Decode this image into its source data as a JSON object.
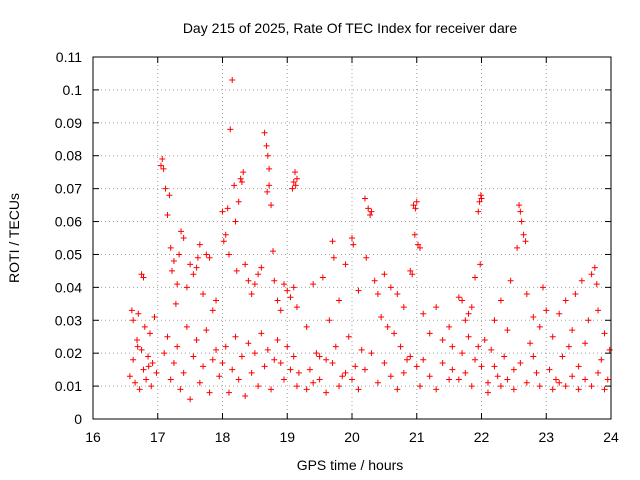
{
  "chart_data": {
    "type": "scatter",
    "title": "Day 215 of 2025, Rate Of TEC Index for receiver dare",
    "xlabel": "GPS time / hours",
    "ylabel": "ROTI / TECUs",
    "xlim": [
      16,
      24
    ],
    "ylim": [
      0,
      0.11
    ],
    "xticks": [
      "16",
      "17",
      "18",
      "19",
      "20",
      "21",
      "22",
      "23",
      "24"
    ],
    "yticks": [
      "0",
      "0.01",
      "0.02",
      "0.03",
      "0.04",
      "0.05",
      "0.06",
      "0.07",
      "0.08",
      "0.09",
      "0.1",
      "0.11"
    ],
    "grid": true,
    "marker": "+",
    "marker_color": "#ff0000",
    "series": [
      {
        "name": "ROTI",
        "points": [
          [
            16.57,
            0.013
          ],
          [
            16.6,
            0.033
          ],
          [
            16.62,
            0.018
          ],
          [
            16.65,
            0.011
          ],
          [
            16.68,
            0.024
          ],
          [
            16.7,
            0.032
          ],
          [
            16.72,
            0.009
          ],
          [
            16.75,
            0.021
          ],
          [
            16.78,
            0.015
          ],
          [
            16.8,
            0.028
          ],
          [
            16.82,
            0.012
          ],
          [
            16.85,
            0.019
          ],
          [
            16.88,
            0.026
          ],
          [
            16.9,
            0.01
          ],
          [
            16.92,
            0.017
          ],
          [
            16.95,
            0.031
          ],
          [
            16.98,
            0.014
          ],
          [
            16.75,
            0.044
          ],
          [
            16.78,
            0.043
          ],
          [
            16.62,
            0.03
          ],
          [
            16.69,
            0.022
          ],
          [
            16.86,
            0.016
          ],
          [
            17.05,
            0.077
          ],
          [
            17.07,
            0.079
          ],
          [
            17.09,
            0.076
          ],
          [
            17.12,
            0.07
          ],
          [
            17.15,
            0.062
          ],
          [
            17.18,
            0.068
          ],
          [
            17.2,
            0.052
          ],
          [
            17.22,
            0.045
          ],
          [
            17.25,
            0.048
          ],
          [
            17.28,
            0.035
          ],
          [
            17.3,
            0.041
          ],
          [
            17.33,
            0.05
          ],
          [
            17.36,
            0.057
          ],
          [
            17.4,
            0.055
          ],
          [
            17.45,
            0.04
          ],
          [
            17.5,
            0.047
          ],
          [
            17.55,
            0.044
          ],
          [
            17.6,
            0.046
          ],
          [
            17.62,
            0.049
          ],
          [
            17.65,
            0.053
          ],
          [
            17.7,
            0.038
          ],
          [
            17.75,
            0.05
          ],
          [
            17.8,
            0.049
          ],
          [
            17.85,
            0.033
          ],
          [
            17.9,
            0.036
          ],
          [
            17.1,
            0.02
          ],
          [
            17.15,
            0.025
          ],
          [
            17.2,
            0.012
          ],
          [
            17.25,
            0.017
          ],
          [
            17.3,
            0.022
          ],
          [
            17.35,
            0.009
          ],
          [
            17.4,
            0.014
          ],
          [
            17.45,
            0.028
          ],
          [
            17.5,
            0.006
          ],
          [
            17.55,
            0.019
          ],
          [
            17.6,
            0.024
          ],
          [
            17.65,
            0.011
          ],
          [
            17.7,
            0.016
          ],
          [
            17.75,
            0.027
          ],
          [
            17.8,
            0.008
          ],
          [
            17.85,
            0.018
          ],
          [
            17.9,
            0.021
          ],
          [
            17.95,
            0.013
          ],
          [
            18.0,
            0.063
          ],
          [
            18.02,
            0.054
          ],
          [
            18.05,
            0.056
          ],
          [
            18.08,
            0.064
          ],
          [
            18.1,
            0.05
          ],
          [
            18.12,
            0.088
          ],
          [
            18.15,
            0.103
          ],
          [
            18.18,
            0.071
          ],
          [
            18.2,
            0.06
          ],
          [
            18.22,
            0.045
          ],
          [
            18.25,
            0.066
          ],
          [
            18.28,
            0.073
          ],
          [
            18.3,
            0.072
          ],
          [
            18.32,
            0.075
          ],
          [
            18.35,
            0.047
          ],
          [
            18.4,
            0.042
          ],
          [
            18.45,
            0.038
          ],
          [
            18.5,
            0.041
          ],
          [
            18.55,
            0.044
          ],
          [
            18.6,
            0.046
          ],
          [
            18.0,
            0.017
          ],
          [
            18.05,
            0.022
          ],
          [
            18.1,
            0.008
          ],
          [
            18.15,
            0.015
          ],
          [
            18.2,
            0.025
          ],
          [
            18.25,
            0.012
          ],
          [
            18.3,
            0.019
          ],
          [
            18.35,
            0.007
          ],
          [
            18.4,
            0.023
          ],
          [
            18.45,
            0.014
          ],
          [
            18.5,
            0.02
          ],
          [
            18.55,
            0.01
          ],
          [
            18.6,
            0.026
          ],
          [
            18.65,
            0.016
          ],
          [
            18.7,
            0.021
          ],
          [
            18.75,
            0.009
          ],
          [
            18.8,
            0.018
          ],
          [
            18.85,
            0.024
          ],
          [
            18.65,
            0.087
          ],
          [
            18.68,
            0.083
          ],
          [
            18.7,
            0.08
          ],
          [
            18.72,
            0.076
          ],
          [
            18.75,
            0.065
          ],
          [
            18.72,
            0.071
          ],
          [
            18.69,
            0.069
          ],
          [
            18.78,
            0.051
          ],
          [
            18.8,
            0.042
          ],
          [
            18.85,
            0.036
          ],
          [
            18.9,
            0.033
          ],
          [
            18.95,
            0.041
          ],
          [
            19.0,
            0.039
          ],
          [
            19.05,
            0.037
          ],
          [
            19.1,
            0.072
          ],
          [
            19.12,
            0.075
          ],
          [
            19.13,
            0.071
          ],
          [
            19.15,
            0.073
          ],
          [
            19.08,
            0.07
          ],
          [
            19.1,
            0.04
          ],
          [
            19.15,
            0.034
          ],
          [
            18.9,
            0.017
          ],
          [
            18.95,
            0.012
          ],
          [
            19.0,
            0.022
          ],
          [
            19.05,
            0.015
          ],
          [
            19.1,
            0.019
          ],
          [
            19.15,
            0.01
          ],
          [
            19.18,
            0.014
          ],
          [
            19.3,
            0.028
          ],
          [
            19.35,
            0.015
          ],
          [
            19.4,
            0.041
          ],
          [
            19.45,
            0.02
          ],
          [
            19.5,
            0.012
          ],
          [
            19.55,
            0.043
          ],
          [
            19.6,
            0.018
          ],
          [
            19.65,
            0.03
          ],
          [
            19.7,
            0.054
          ],
          [
            19.72,
            0.049
          ],
          [
            19.75,
            0.022
          ],
          [
            19.8,
            0.036
          ],
          [
            19.85,
            0.013
          ],
          [
            19.9,
            0.047
          ],
          [
            19.95,
            0.025
          ],
          [
            20.0,
            0.055
          ],
          [
            20.02,
            0.053
          ],
          [
            20.05,
            0.016
          ],
          [
            20.1,
            0.039
          ],
          [
            20.15,
            0.021
          ],
          [
            19.3,
            0.009
          ],
          [
            19.4,
            0.011
          ],
          [
            19.5,
            0.019
          ],
          [
            19.6,
            0.008
          ],
          [
            19.7,
            0.017
          ],
          [
            19.8,
            0.01
          ],
          [
            19.9,
            0.014
          ],
          [
            20.0,
            0.012
          ],
          [
            20.1,
            0.009
          ],
          [
            20.2,
            0.067
          ],
          [
            20.25,
            0.064
          ],
          [
            20.28,
            0.062
          ],
          [
            20.3,
            0.063
          ],
          [
            20.22,
            0.049
          ],
          [
            20.35,
            0.042
          ],
          [
            20.4,
            0.038
          ],
          [
            20.45,
            0.031
          ],
          [
            20.5,
            0.044
          ],
          [
            20.55,
            0.028
          ],
          [
            20.6,
            0.04
          ],
          [
            20.65,
            0.026
          ],
          [
            20.7,
            0.038
          ],
          [
            20.75,
            0.022
          ],
          [
            20.8,
            0.034
          ],
          [
            20.85,
            0.018
          ],
          [
            20.2,
            0.015
          ],
          [
            20.3,
            0.02
          ],
          [
            20.4,
            0.011
          ],
          [
            20.5,
            0.017
          ],
          [
            20.6,
            0.013
          ],
          [
            20.7,
            0.009
          ],
          [
            20.8,
            0.014
          ],
          [
            20.9,
            0.019
          ],
          [
            20.95,
            0.065
          ],
          [
            20.98,
            0.064
          ],
          [
            21.0,
            0.066
          ],
          [
            20.97,
            0.056
          ],
          [
            21.02,
            0.053
          ],
          [
            21.05,
            0.052
          ],
          [
            20.9,
            0.045
          ],
          [
            20.93,
            0.044
          ],
          [
            21.1,
            0.032
          ],
          [
            21.2,
            0.026
          ],
          [
            21.3,
            0.034
          ],
          [
            21.4,
            0.024
          ],
          [
            21.5,
            0.028
          ],
          [
            21.55,
            0.022
          ],
          [
            21.0,
            0.016
          ],
          [
            21.05,
            0.01
          ],
          [
            21.1,
            0.018
          ],
          [
            21.2,
            0.013
          ],
          [
            21.3,
            0.009
          ],
          [
            21.4,
            0.017
          ],
          [
            21.5,
            0.012
          ],
          [
            21.55,
            0.015
          ],
          [
            21.65,
            0.037
          ],
          [
            21.7,
            0.036
          ],
          [
            21.75,
            0.03
          ],
          [
            21.8,
            0.032
          ],
          [
            21.85,
            0.034
          ],
          [
            21.9,
            0.043
          ],
          [
            21.95,
            0.063
          ],
          [
            21.97,
            0.066
          ],
          [
            21.99,
            0.068
          ],
          [
            22.0,
            0.067
          ],
          [
            21.98,
            0.047
          ],
          [
            21.65,
            0.012
          ],
          [
            21.7,
            0.02
          ],
          [
            21.75,
            0.014
          ],
          [
            21.8,
            0.025
          ],
          [
            21.85,
            0.01
          ],
          [
            21.9,
            0.018
          ],
          [
            21.95,
            0.022
          ],
          [
            22.0,
            0.016
          ],
          [
            22.05,
            0.024
          ],
          [
            22.1,
            0.011
          ],
          [
            22.15,
            0.021
          ],
          [
            22.2,
            0.03
          ],
          [
            22.25,
            0.013
          ],
          [
            22.3,
            0.036
          ],
          [
            22.35,
            0.019
          ],
          [
            22.4,
            0.027
          ],
          [
            22.45,
            0.042
          ],
          [
            22.5,
            0.015
          ],
          [
            22.55,
            0.052
          ],
          [
            22.58,
            0.065
          ],
          [
            22.6,
            0.063
          ],
          [
            22.62,
            0.06
          ],
          [
            22.65,
            0.056
          ],
          [
            22.68,
            0.054
          ],
          [
            22.7,
            0.038
          ],
          [
            22.75,
            0.023
          ],
          [
            22.8,
            0.031
          ],
          [
            22.85,
            0.014
          ],
          [
            22.9,
            0.028
          ],
          [
            22.95,
            0.04
          ],
          [
            23.0,
            0.033
          ],
          [
            22.1,
            0.008
          ],
          [
            22.2,
            0.016
          ],
          [
            22.3,
            0.01
          ],
          [
            22.4,
            0.012
          ],
          [
            22.5,
            0.009
          ],
          [
            22.6,
            0.017
          ],
          [
            22.7,
            0.011
          ],
          [
            22.8,
            0.019
          ],
          [
            22.9,
            0.01
          ],
          [
            23.05,
            0.015
          ],
          [
            23.1,
            0.025
          ],
          [
            23.15,
            0.012
          ],
          [
            23.2,
            0.032
          ],
          [
            23.25,
            0.019
          ],
          [
            23.3,
            0.036
          ],
          [
            23.35,
            0.022
          ],
          [
            23.4,
            0.027
          ],
          [
            23.45,
            0.038
          ],
          [
            23.5,
            0.016
          ],
          [
            23.55,
            0.042
          ],
          [
            23.6,
            0.023
          ],
          [
            23.65,
            0.03
          ],
          [
            23.7,
            0.044
          ],
          [
            23.75,
            0.046
          ],
          [
            23.78,
            0.041
          ],
          [
            23.8,
            0.033
          ],
          [
            23.85,
            0.018
          ],
          [
            23.9,
            0.026
          ],
          [
            23.95,
            0.012
          ],
          [
            23.98,
            0.021
          ],
          [
            23.1,
            0.009
          ],
          [
            23.2,
            0.011
          ],
          [
            23.3,
            0.01
          ],
          [
            23.4,
            0.013
          ],
          [
            23.5,
            0.009
          ],
          [
            23.6,
            0.012
          ],
          [
            23.7,
            0.01
          ],
          [
            23.8,
            0.014
          ],
          [
            23.9,
            0.009
          ]
        ]
      }
    ]
  }
}
